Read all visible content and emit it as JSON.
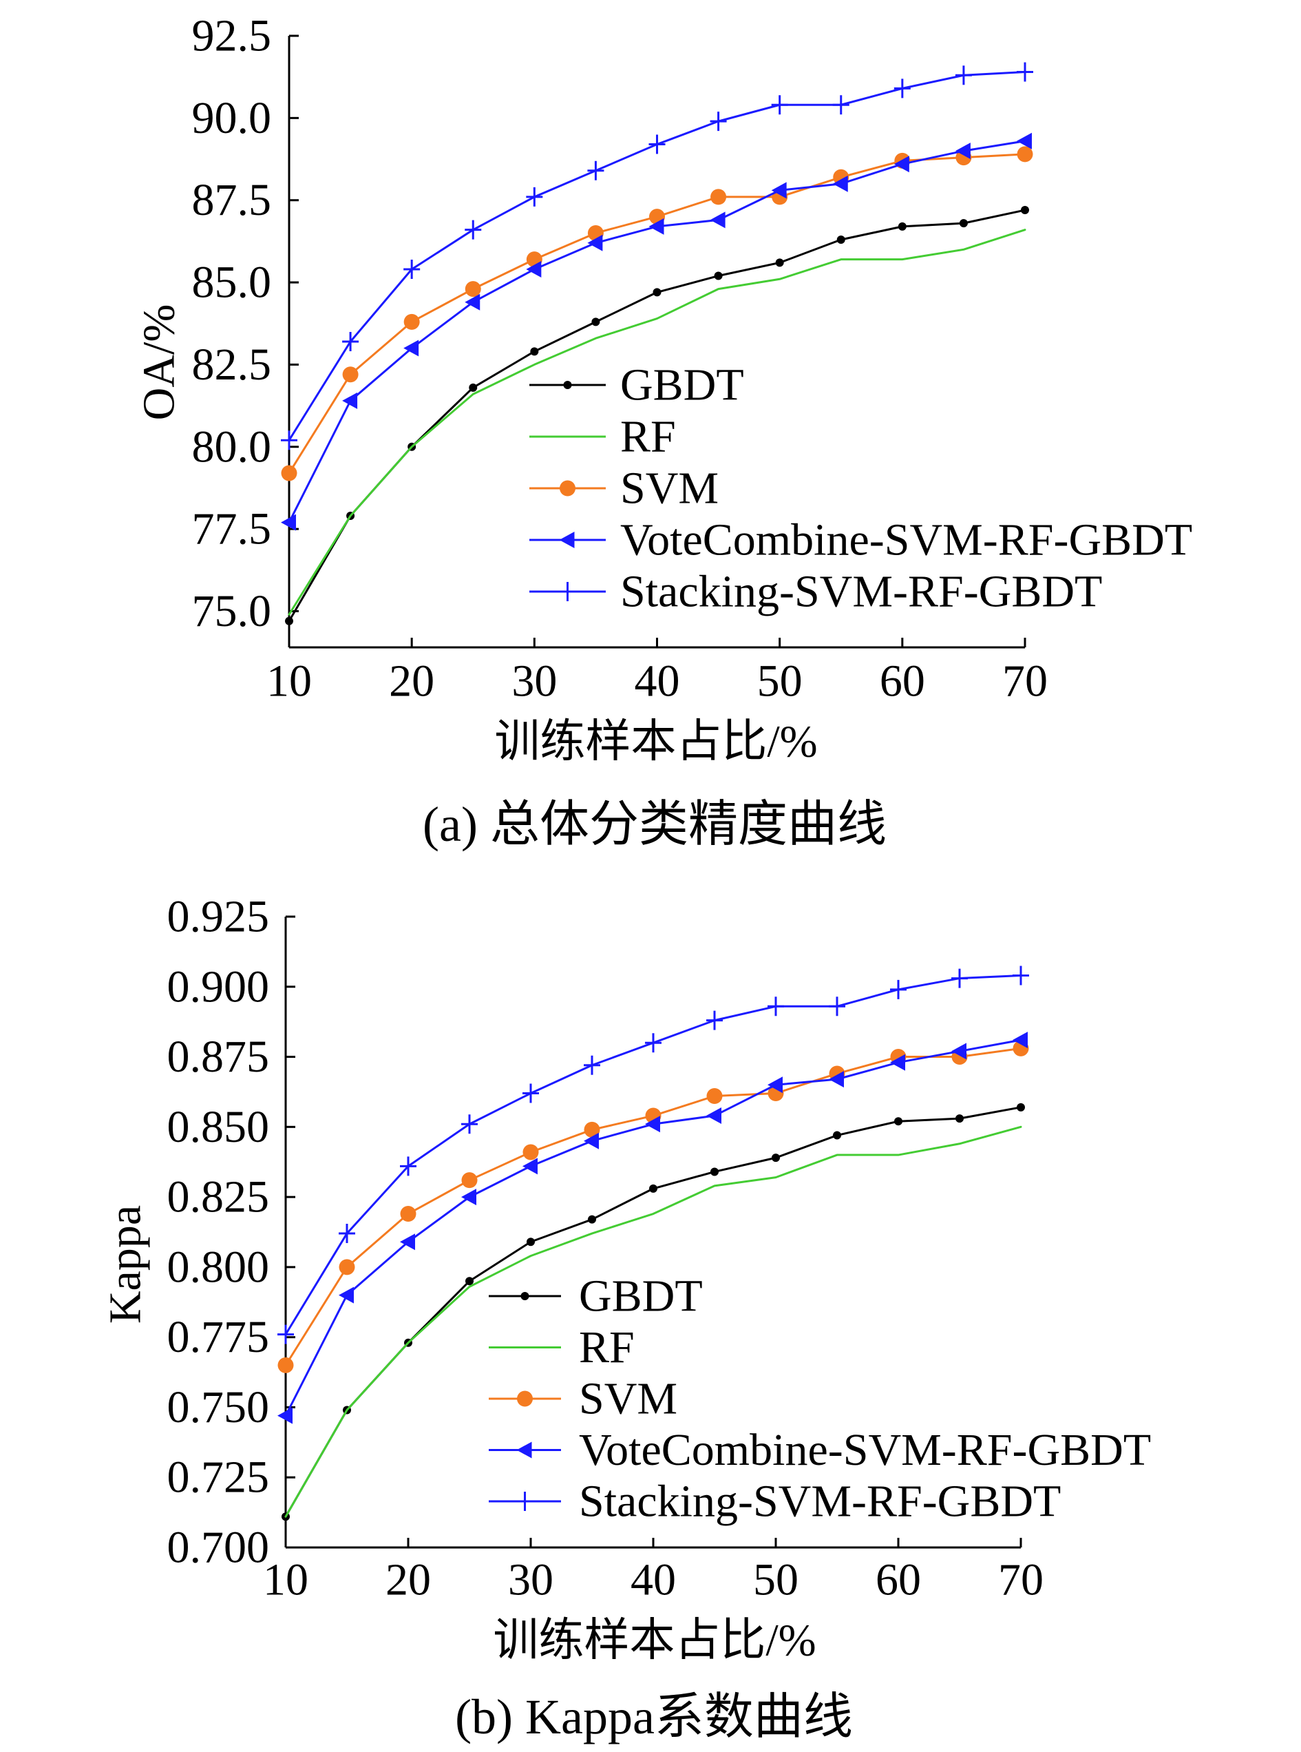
{
  "chart_data": [
    {
      "type": "line",
      "caption": "(a) 总体分类精度曲线",
      "title": "",
      "xlabel": "训练样本占比/%",
      "ylabel": "OA/%",
      "x": [
        10,
        15,
        20,
        25,
        30,
        35,
        40,
        45,
        50,
        55,
        60,
        65,
        70
      ],
      "xlim": [
        10,
        70
      ],
      "xticks": [
        10,
        20,
        30,
        40,
        50,
        60,
        70
      ],
      "ylim": [
        73.9,
        92.5
      ],
      "ytick_labels": [
        "75.0",
        "77.5",
        "80.0",
        "82.5",
        "85.0",
        "87.5",
        "90.0",
        "92.5"
      ],
      "grid": false,
      "series": [
        {
          "name": "GBDT",
          "color": "#000000",
          "marker": "dot",
          "values": [
            74.7,
            77.9,
            80.0,
            81.8,
            82.9,
            83.8,
            84.7,
            85.2,
            85.6,
            86.3,
            86.7,
            86.8,
            87.2
          ]
        },
        {
          "name": "RF",
          "color": "#44cc33",
          "marker": "none",
          "values": [
            74.9,
            77.9,
            80.0,
            81.6,
            82.5,
            83.3,
            83.9,
            84.8,
            85.1,
            85.7,
            85.7,
            86.0,
            86.6
          ]
        },
        {
          "name": "SVM",
          "color": "#f47b20",
          "marker": "circle",
          "values": [
            79.2,
            82.2,
            83.8,
            84.8,
            85.7,
            86.5,
            87.0,
            87.6,
            87.6,
            88.2,
            88.7,
            88.8,
            88.9
          ]
        },
        {
          "name": "VoteCombine-SVM-RF-GBDT",
          "color": "#1a1aff",
          "marker": "triangle-left",
          "values": [
            77.7,
            81.4,
            83.0,
            84.4,
            85.4,
            86.2,
            86.7,
            86.9,
            87.8,
            88.0,
            88.6,
            89.0,
            89.3
          ]
        },
        {
          "name": "Stacking-SVM-RF-GBDT",
          "color": "#1a1aff",
          "marker": "plus",
          "values": [
            80.2,
            83.2,
            85.4,
            86.6,
            87.6,
            88.4,
            89.2,
            89.9,
            90.4,
            90.4,
            90.9,
            91.3,
            91.4
          ]
        }
      ]
    },
    {
      "type": "line",
      "caption": "(b) Kappa系数曲线",
      "title": "",
      "xlabel": "训练样本占比/%",
      "ylabel": "Kappa",
      "x": [
        10,
        15,
        20,
        25,
        30,
        35,
        40,
        45,
        50,
        55,
        60,
        65,
        70
      ],
      "xlim": [
        10,
        70
      ],
      "xticks": [
        10,
        20,
        30,
        40,
        50,
        60,
        70
      ],
      "ylim": [
        0.7,
        0.925
      ],
      "ytick_labels": [
        "0.700",
        "0.725",
        "0.750",
        "0.775",
        "0.800",
        "0.825",
        "0.850",
        "0.875",
        "0.900",
        "0.925"
      ],
      "grid": false,
      "series": [
        {
          "name": "GBDT",
          "color": "#000000",
          "marker": "dot",
          "values": [
            0.711,
            0.749,
            0.773,
            0.795,
            0.809,
            0.817,
            0.828,
            0.834,
            0.839,
            0.847,
            0.852,
            0.853,
            0.857
          ]
        },
        {
          "name": "RF",
          "color": "#44cc33",
          "marker": "none",
          "values": [
            0.711,
            0.749,
            0.773,
            0.793,
            0.804,
            0.812,
            0.819,
            0.829,
            0.832,
            0.84,
            0.84,
            0.844,
            0.85
          ]
        },
        {
          "name": "SVM",
          "color": "#f47b20",
          "marker": "circle",
          "values": [
            0.765,
            0.8,
            0.819,
            0.831,
            0.841,
            0.849,
            0.854,
            0.861,
            0.862,
            0.869,
            0.875,
            0.875,
            0.878
          ]
        },
        {
          "name": "VoteCombine-SVM-RF-GBDT",
          "color": "#1a1aff",
          "marker": "triangle-left",
          "values": [
            0.747,
            0.79,
            0.809,
            0.825,
            0.836,
            0.845,
            0.851,
            0.854,
            0.865,
            0.867,
            0.873,
            0.877,
            0.881
          ]
        },
        {
          "name": "Stacking-SVM-RF-GBDT",
          "color": "#1a1aff",
          "marker": "plus",
          "values": [
            0.776,
            0.812,
            0.836,
            0.851,
            0.862,
            0.872,
            0.88,
            0.888,
            0.893,
            0.893,
            0.899,
            0.903,
            0.904
          ]
        }
      ]
    }
  ]
}
